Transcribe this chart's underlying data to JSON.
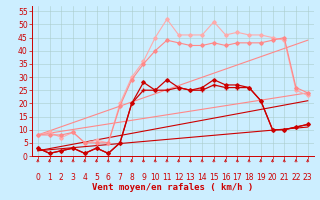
{
  "background_color": "#cceeff",
  "grid_color": "#aacccc",
  "xlim": [
    -0.5,
    23.5
  ],
  "ylim": [
    0,
    57
  ],
  "yticks": [
    0,
    5,
    10,
    15,
    20,
    25,
    30,
    35,
    40,
    45,
    50,
    55
  ],
  "xticks": [
    0,
    1,
    2,
    3,
    4,
    5,
    6,
    7,
    8,
    9,
    10,
    11,
    12,
    13,
    14,
    15,
    16,
    17,
    18,
    19,
    20,
    21,
    22,
    23
  ],
  "xlabel": "Vent moyen/en rafales ( km/h )",
  "xlabel_color": "#cc0000",
  "xlabel_fontsize": 6.5,
  "tick_fontsize": 5.5,
  "tick_color": "#cc0000",
  "lines": [
    {
      "x": [
        0,
        1,
        2,
        3,
        4,
        5,
        6,
        7,
        8,
        9,
        10,
        11,
        12,
        13,
        14,
        15,
        16,
        17,
        18,
        19,
        20,
        21,
        22,
        23
      ],
      "y": [
        8,
        9,
        7,
        9,
        5,
        6,
        5,
        20,
        30,
        36,
        45,
        52,
        46,
        46,
        46,
        51,
        46,
        47,
        46,
        46,
        45,
        44,
        25,
        23
      ],
      "color": "#ffaaaa",
      "linewidth": 0.8,
      "marker": "D",
      "markersize": 1.8,
      "zorder": 3
    },
    {
      "x": [
        0,
        1,
        2,
        3,
        4,
        5,
        6,
        7,
        8,
        9,
        10,
        11,
        12,
        13,
        14,
        15,
        16,
        17,
        18,
        19,
        20,
        21,
        22,
        23
      ],
      "y": [
        8,
        8,
        8,
        9,
        5,
        5,
        5,
        19,
        29,
        35,
        40,
        44,
        43,
        42,
        42,
        43,
        42,
        43,
        43,
        43,
        44,
        45,
        26,
        24
      ],
      "color": "#ff8888",
      "linewidth": 0.8,
      "marker": "D",
      "markersize": 1.8,
      "zorder": 3
    },
    {
      "x": [
        0,
        1,
        2,
        3,
        4,
        5,
        6,
        7,
        8,
        9,
        10,
        11,
        12,
        13,
        14,
        15,
        16,
        17,
        18,
        19,
        20,
        21,
        22,
        23
      ],
      "y": [
        3,
        1,
        2,
        3,
        1,
        3,
        1,
        5,
        20,
        28,
        25,
        29,
        26,
        25,
        26,
        29,
        27,
        27,
        26,
        21,
        10,
        10,
        11,
        12
      ],
      "color": "#cc0000",
      "linewidth": 0.9,
      "marker": "D",
      "markersize": 1.8,
      "zorder": 5
    },
    {
      "x": [
        0,
        1,
        2,
        3,
        4,
        5,
        6,
        7,
        8,
        9,
        10,
        11,
        12,
        13,
        14,
        15,
        16,
        17,
        18,
        19,
        20,
        21,
        22,
        23
      ],
      "y": [
        3,
        1,
        2,
        3,
        1,
        3,
        1,
        5,
        20,
        25,
        25,
        25,
        26,
        25,
        25,
        27,
        26,
        26,
        26,
        21,
        10,
        10,
        11,
        12
      ],
      "color": "#cc0000",
      "linewidth": 0.9,
      "marker": "+",
      "markersize": 3.0,
      "zorder": 5
    },
    {
      "x": [
        0,
        23
      ],
      "y": [
        2,
        11
      ],
      "color": "#cc0000",
      "linewidth": 0.8,
      "marker": null,
      "markersize": 0,
      "zorder": 2
    },
    {
      "x": [
        0,
        23
      ],
      "y": [
        2,
        21
      ],
      "color": "#cc0000",
      "linewidth": 0.8,
      "marker": null,
      "markersize": 0,
      "zorder": 2
    },
    {
      "x": [
        0,
        23
      ],
      "y": [
        8,
        24
      ],
      "color": "#ff8888",
      "linewidth": 0.8,
      "marker": null,
      "markersize": 0,
      "zorder": 2
    },
    {
      "x": [
        0,
        23
      ],
      "y": [
        8,
        44
      ],
      "color": "#ff8888",
      "linewidth": 0.8,
      "marker": null,
      "markersize": 0,
      "zorder": 2
    }
  ]
}
